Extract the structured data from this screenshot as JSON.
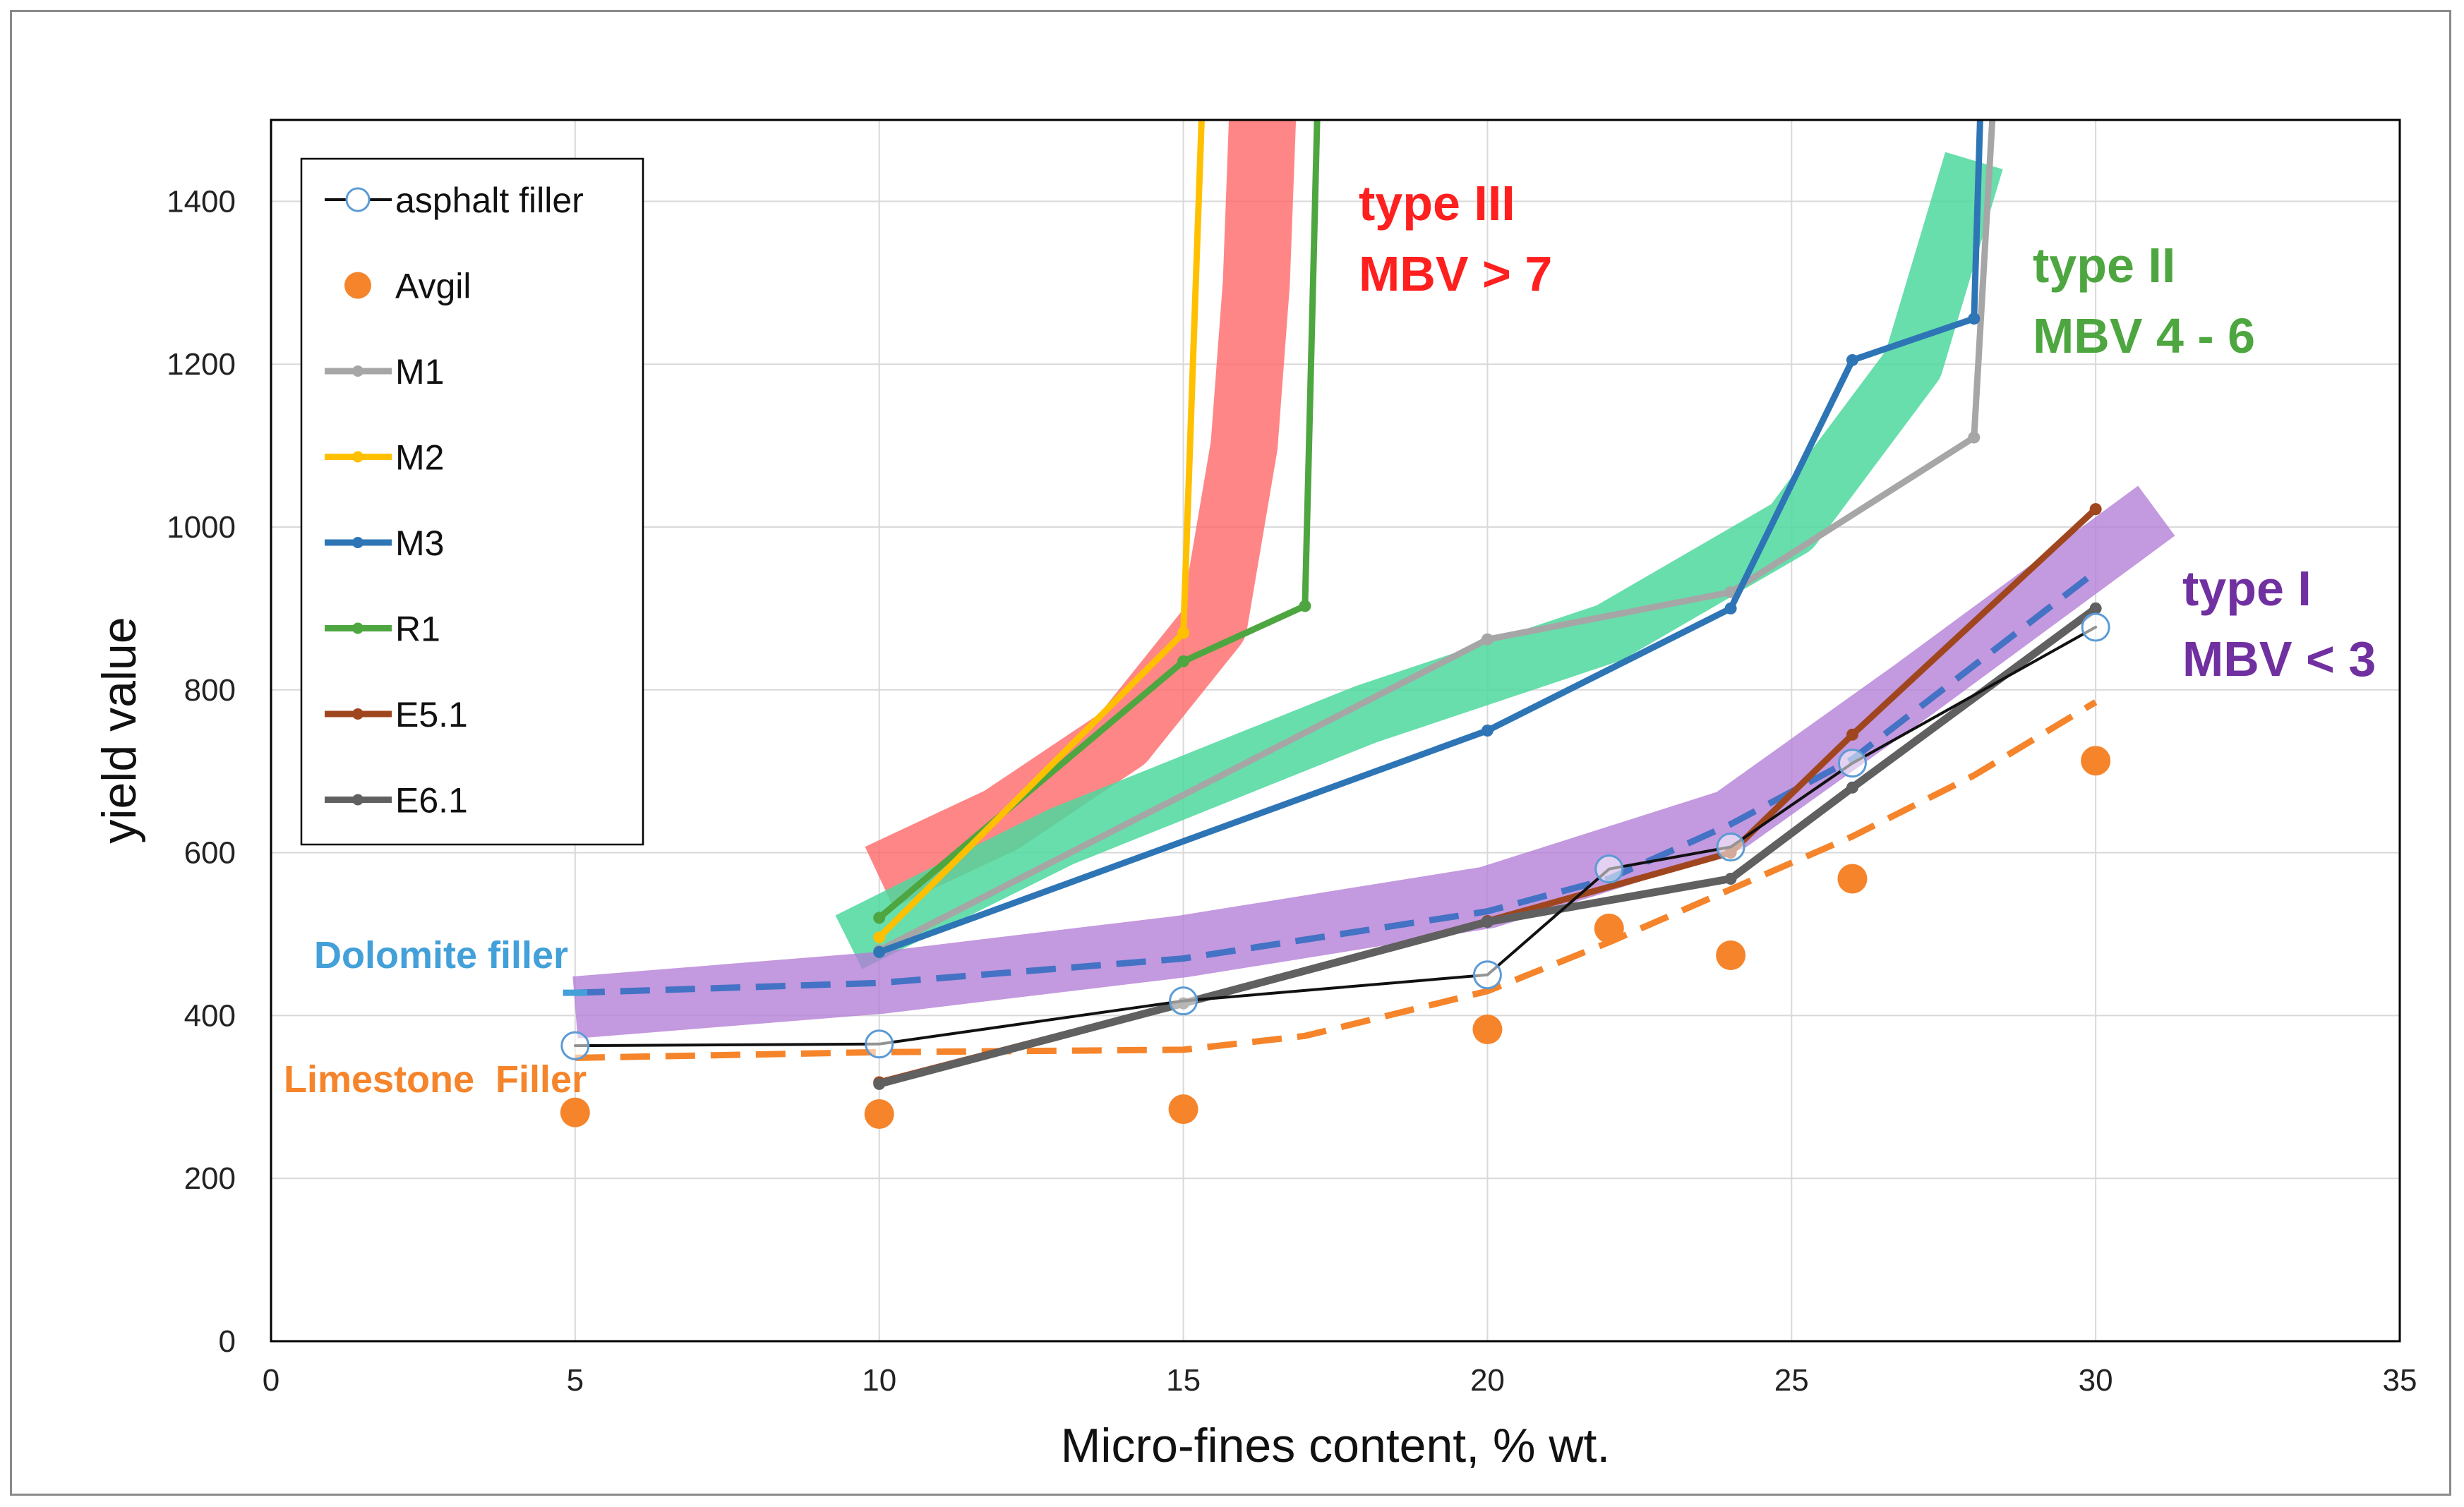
{
  "chart_data": {
    "type": "line",
    "title": "",
    "xlabel": "Micro-fines content, % wt.",
    "ylabel": "yield value",
    "xlim": [
      0,
      35
    ],
    "ylim": [
      0,
      1500
    ],
    "xticks": [
      0,
      5,
      10,
      15,
      20,
      25,
      30,
      35
    ],
    "yticks": [
      0,
      200,
      400,
      600,
      800,
      1000,
      1200,
      1400
    ],
    "grid": true,
    "legend_position": "top-left",
    "colors": {
      "asphalt_filler": "#111111",
      "avgil": "#f5842b",
      "m1": "#a6a6a6",
      "m2": "#ffc000",
      "m3": "#2e75b6",
      "r1": "#4ea640",
      "e51": "#a0461f",
      "e61": "#606060",
      "type_iii": "#fe1f1f",
      "type_ii": "#4cd89e",
      "type_i": "#7030a0",
      "type_i_band": "#b27cd6",
      "dolomite": "#43a0d8",
      "limestone": "#f5842b"
    },
    "series": [
      {
        "name": "asphalt filler",
        "x": [
          5,
          10,
          15,
          20,
          22,
          24,
          26,
          30
        ],
        "y": [
          363,
          365,
          418,
          450,
          580,
          607,
          710,
          877
        ]
      },
      {
        "name": "Avgil",
        "x": [
          5,
          10,
          15,
          20,
          22,
          24,
          26,
          30
        ],
        "y": [
          281,
          279,
          285,
          383,
          507,
          474,
          568,
          713
        ]
      },
      {
        "name": "M1",
        "x": [
          10,
          20,
          24,
          28,
          28.3
        ],
        "y": [
          480,
          862,
          920,
          1110,
          1500
        ]
      },
      {
        "name": "M2",
        "x": [
          10,
          15,
          15.3
        ],
        "y": [
          496,
          870,
          1500
        ]
      },
      {
        "name": "M3",
        "x": [
          10,
          20,
          24,
          26,
          28,
          28.1
        ],
        "y": [
          478,
          750,
          900,
          1205,
          1256,
          1500
        ]
      },
      {
        "name": "R1",
        "x": [
          10,
          15,
          17,
          17.2
        ],
        "y": [
          520,
          835,
          903,
          1500
        ]
      },
      {
        "name": "E5.1",
        "x": [
          10,
          15,
          20,
          24,
          26,
          30
        ],
        "y": [
          318,
          415,
          516,
          600,
          745,
          1022
        ]
      },
      {
        "name": "E6.1",
        "x": [
          10,
          15,
          20,
          24,
          26,
          30
        ],
        "y": [
          316,
          415,
          515,
          568,
          680,
          900
        ]
      }
    ],
    "bands": [
      {
        "name": "type III",
        "x": [
          10,
          12,
          14,
          15.5,
          16,
          16.2,
          16.3
        ],
        "y": [
          570,
          640,
          740,
          880,
          1100,
          1300,
          1500
        ]
      },
      {
        "name": "type II",
        "x": [
          9.5,
          13,
          18,
          22,
          25,
          27,
          28
        ],
        "y": [
          490,
          620,
          770,
          870,
          1000,
          1200,
          1450
        ]
      },
      {
        "name": "type I",
        "x": [
          5,
          10,
          15,
          20,
          24,
          27,
          31
        ],
        "y": [
          410,
          440,
          485,
          545,
          640,
          800,
          1020
        ]
      }
    ],
    "reference_lines": [
      {
        "name": "Dolomite filler",
        "x": [
          5,
          10,
          15,
          20,
          22,
          24,
          26,
          28,
          30
        ],
        "y": [
          428,
          440,
          470,
          528,
          568,
          635,
          715,
          830,
          945
        ]
      },
      {
        "name": "Limestone Filler",
        "x": [
          5,
          10,
          15,
          17,
          20,
          22,
          24,
          26,
          28,
          30
        ],
        "y": [
          348,
          355,
          358,
          375,
          430,
          490,
          555,
          620,
          695,
          785
        ]
      }
    ],
    "annotations": {
      "type_iii_title": "type III",
      "type_iii_mbv": "MBV > 7",
      "type_ii_title": "type II",
      "type_ii_mbv": "MBV 4 - 6",
      "type_i_title": "type I",
      "type_i_mbv": "MBV < 3",
      "dolomite_label": "Dolomite filler",
      "limestone_label": "Limestone  Filler"
    }
  }
}
